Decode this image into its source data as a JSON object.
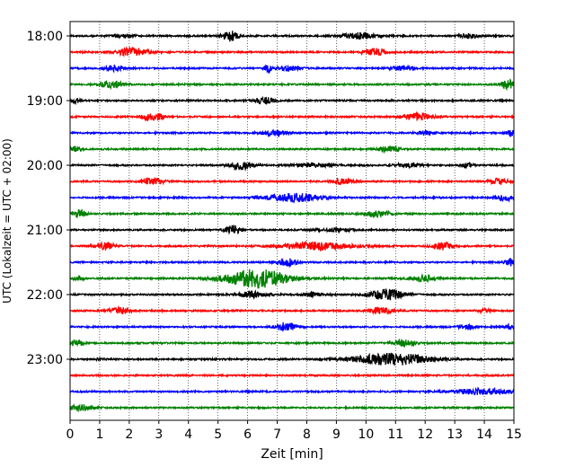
{
  "chart_data": {
    "type": "line",
    "title": "",
    "xlabel": "Zeit  [min]",
    "ylabel": "UTC (Lokalzeit = UTC + 02:00)",
    "xlim": [
      0,
      15
    ],
    "x_ticks": [
      0,
      1,
      2,
      3,
      4,
      5,
      6,
      7,
      8,
      9,
      10,
      11,
      12,
      13,
      14,
      15
    ],
    "y_tick_labels": [
      "18:00",
      "19:00",
      "20:00",
      "21:00",
      "22:00",
      "23:00"
    ],
    "grid": "vertical dotted",
    "colors": [
      "#000000",
      "#ff0000",
      "#0000ff",
      "#008000"
    ],
    "traces": [
      {
        "label": "18:00",
        "color": "#000000",
        "events": [
          [
            5.4,
            1.0,
            0.25
          ],
          [
            9.8,
            0.55,
            0.6
          ],
          [
            13.5,
            0.45,
            0.3
          ],
          [
            1.8,
            0.3,
            0.4
          ]
        ]
      },
      {
        "label": "18:15",
        "color": "#ff0000",
        "events": [
          [
            2.1,
            0.8,
            0.5
          ],
          [
            10.3,
            0.65,
            0.4
          ]
        ]
      },
      {
        "label": "18:30",
        "color": "#0000ff",
        "events": [
          [
            1.5,
            0.55,
            0.3
          ],
          [
            7.4,
            0.5,
            0.35
          ],
          [
            6.7,
            0.8,
            0.12
          ],
          [
            11.2,
            0.35,
            0.4
          ]
        ]
      },
      {
        "label": "18:45",
        "color": "#008000",
        "events": [
          [
            1.4,
            0.6,
            0.4
          ],
          [
            14.8,
            0.8,
            0.25
          ]
        ]
      },
      {
        "label": "19:00",
        "color": "#000000",
        "events": [
          [
            0.2,
            0.4,
            0.15
          ],
          [
            6.6,
            0.6,
            0.3
          ]
        ]
      },
      {
        "label": "19:15",
        "color": "#ff0000",
        "events": [
          [
            2.6,
            0.7,
            0.2
          ],
          [
            3.0,
            0.5,
            0.2
          ],
          [
            11.7,
            0.65,
            0.5
          ]
        ]
      },
      {
        "label": "19:30",
        "color": "#0000ff",
        "events": [
          [
            6.9,
            0.55,
            0.4
          ],
          [
            12.0,
            0.35,
            0.3
          ],
          [
            14.9,
            0.5,
            0.15
          ]
        ]
      },
      {
        "label": "19:45",
        "color": "#008000",
        "events": [
          [
            0.2,
            0.5,
            0.15
          ],
          [
            10.8,
            0.65,
            0.3
          ]
        ]
      },
      {
        "label": "20:00",
        "color": "#000000",
        "events": [
          [
            5.8,
            0.75,
            0.4
          ],
          [
            8.2,
            0.35,
            0.6
          ],
          [
            11.4,
            0.4,
            0.4
          ],
          [
            13.4,
            0.35,
            0.2
          ]
        ]
      },
      {
        "label": "20:15",
        "color": "#ff0000",
        "events": [
          [
            2.8,
            0.65,
            0.35
          ],
          [
            9.2,
            0.5,
            0.35
          ],
          [
            14.5,
            0.5,
            0.35
          ]
        ]
      },
      {
        "label": "20:30",
        "color": "#0000ff",
        "events": [
          [
            7.6,
            0.75,
            0.9
          ],
          [
            14.7,
            0.55,
            0.3
          ]
        ]
      },
      {
        "label": "20:45",
        "color": "#008000",
        "events": [
          [
            0.3,
            0.7,
            0.25
          ],
          [
            10.4,
            0.55,
            0.4
          ]
        ]
      },
      {
        "label": "21:00",
        "color": "#000000",
        "events": [
          [
            5.5,
            0.8,
            0.25
          ],
          [
            9.0,
            0.3,
            0.6
          ]
        ]
      },
      {
        "label": "21:15",
        "color": "#ff0000",
        "events": [
          [
            1.2,
            0.7,
            0.3
          ],
          [
            8.3,
            0.7,
            1.2
          ],
          [
            12.6,
            0.65,
            0.35
          ]
        ]
      },
      {
        "label": "21:30",
        "color": "#0000ff",
        "events": [
          [
            7.3,
            0.75,
            0.35
          ],
          [
            14.9,
            0.7,
            0.2
          ]
        ]
      },
      {
        "label": "21:45",
        "color": "#008000",
        "events": [
          [
            6.3,
            1.7,
            1.1
          ],
          [
            11.9,
            0.5,
            0.4
          ],
          [
            0.3,
            0.45,
            0.15
          ]
        ]
      },
      {
        "label": "22:00",
        "color": "#000000",
        "events": [
          [
            10.7,
            1.0,
            0.6
          ],
          [
            6.2,
            0.55,
            0.5
          ],
          [
            8.2,
            0.3,
            0.4
          ]
        ]
      },
      {
        "label": "22:15",
        "color": "#ff0000",
        "events": [
          [
            1.7,
            0.6,
            0.35
          ],
          [
            10.5,
            0.65,
            0.35
          ],
          [
            14.0,
            0.35,
            0.2
          ]
        ]
      },
      {
        "label": "22:30",
        "color": "#0000ff",
        "events": [
          [
            7.3,
            0.85,
            0.35
          ],
          [
            13.4,
            0.45,
            0.25
          ],
          [
            14.8,
            0.35,
            0.15
          ]
        ]
      },
      {
        "label": "22:45",
        "color": "#008000",
        "events": [
          [
            0.25,
            0.75,
            0.2
          ],
          [
            11.3,
            0.65,
            0.35
          ]
        ]
      },
      {
        "label": "23:00",
        "color": "#000000",
        "events": [
          [
            10.9,
            1.1,
            1.3
          ],
          [
            1.0,
            0.3,
            0.08
          ]
        ]
      },
      {
        "label": "23:15",
        "color": "#ff0000",
        "events": []
      },
      {
        "label": "23:30",
        "color": "#0000ff",
        "events": [
          [
            13.9,
            0.55,
            1.0
          ]
        ]
      },
      {
        "label": "23:45",
        "color": "#008000",
        "events": [
          [
            0.4,
            0.5,
            0.4
          ]
        ]
      }
    ]
  }
}
